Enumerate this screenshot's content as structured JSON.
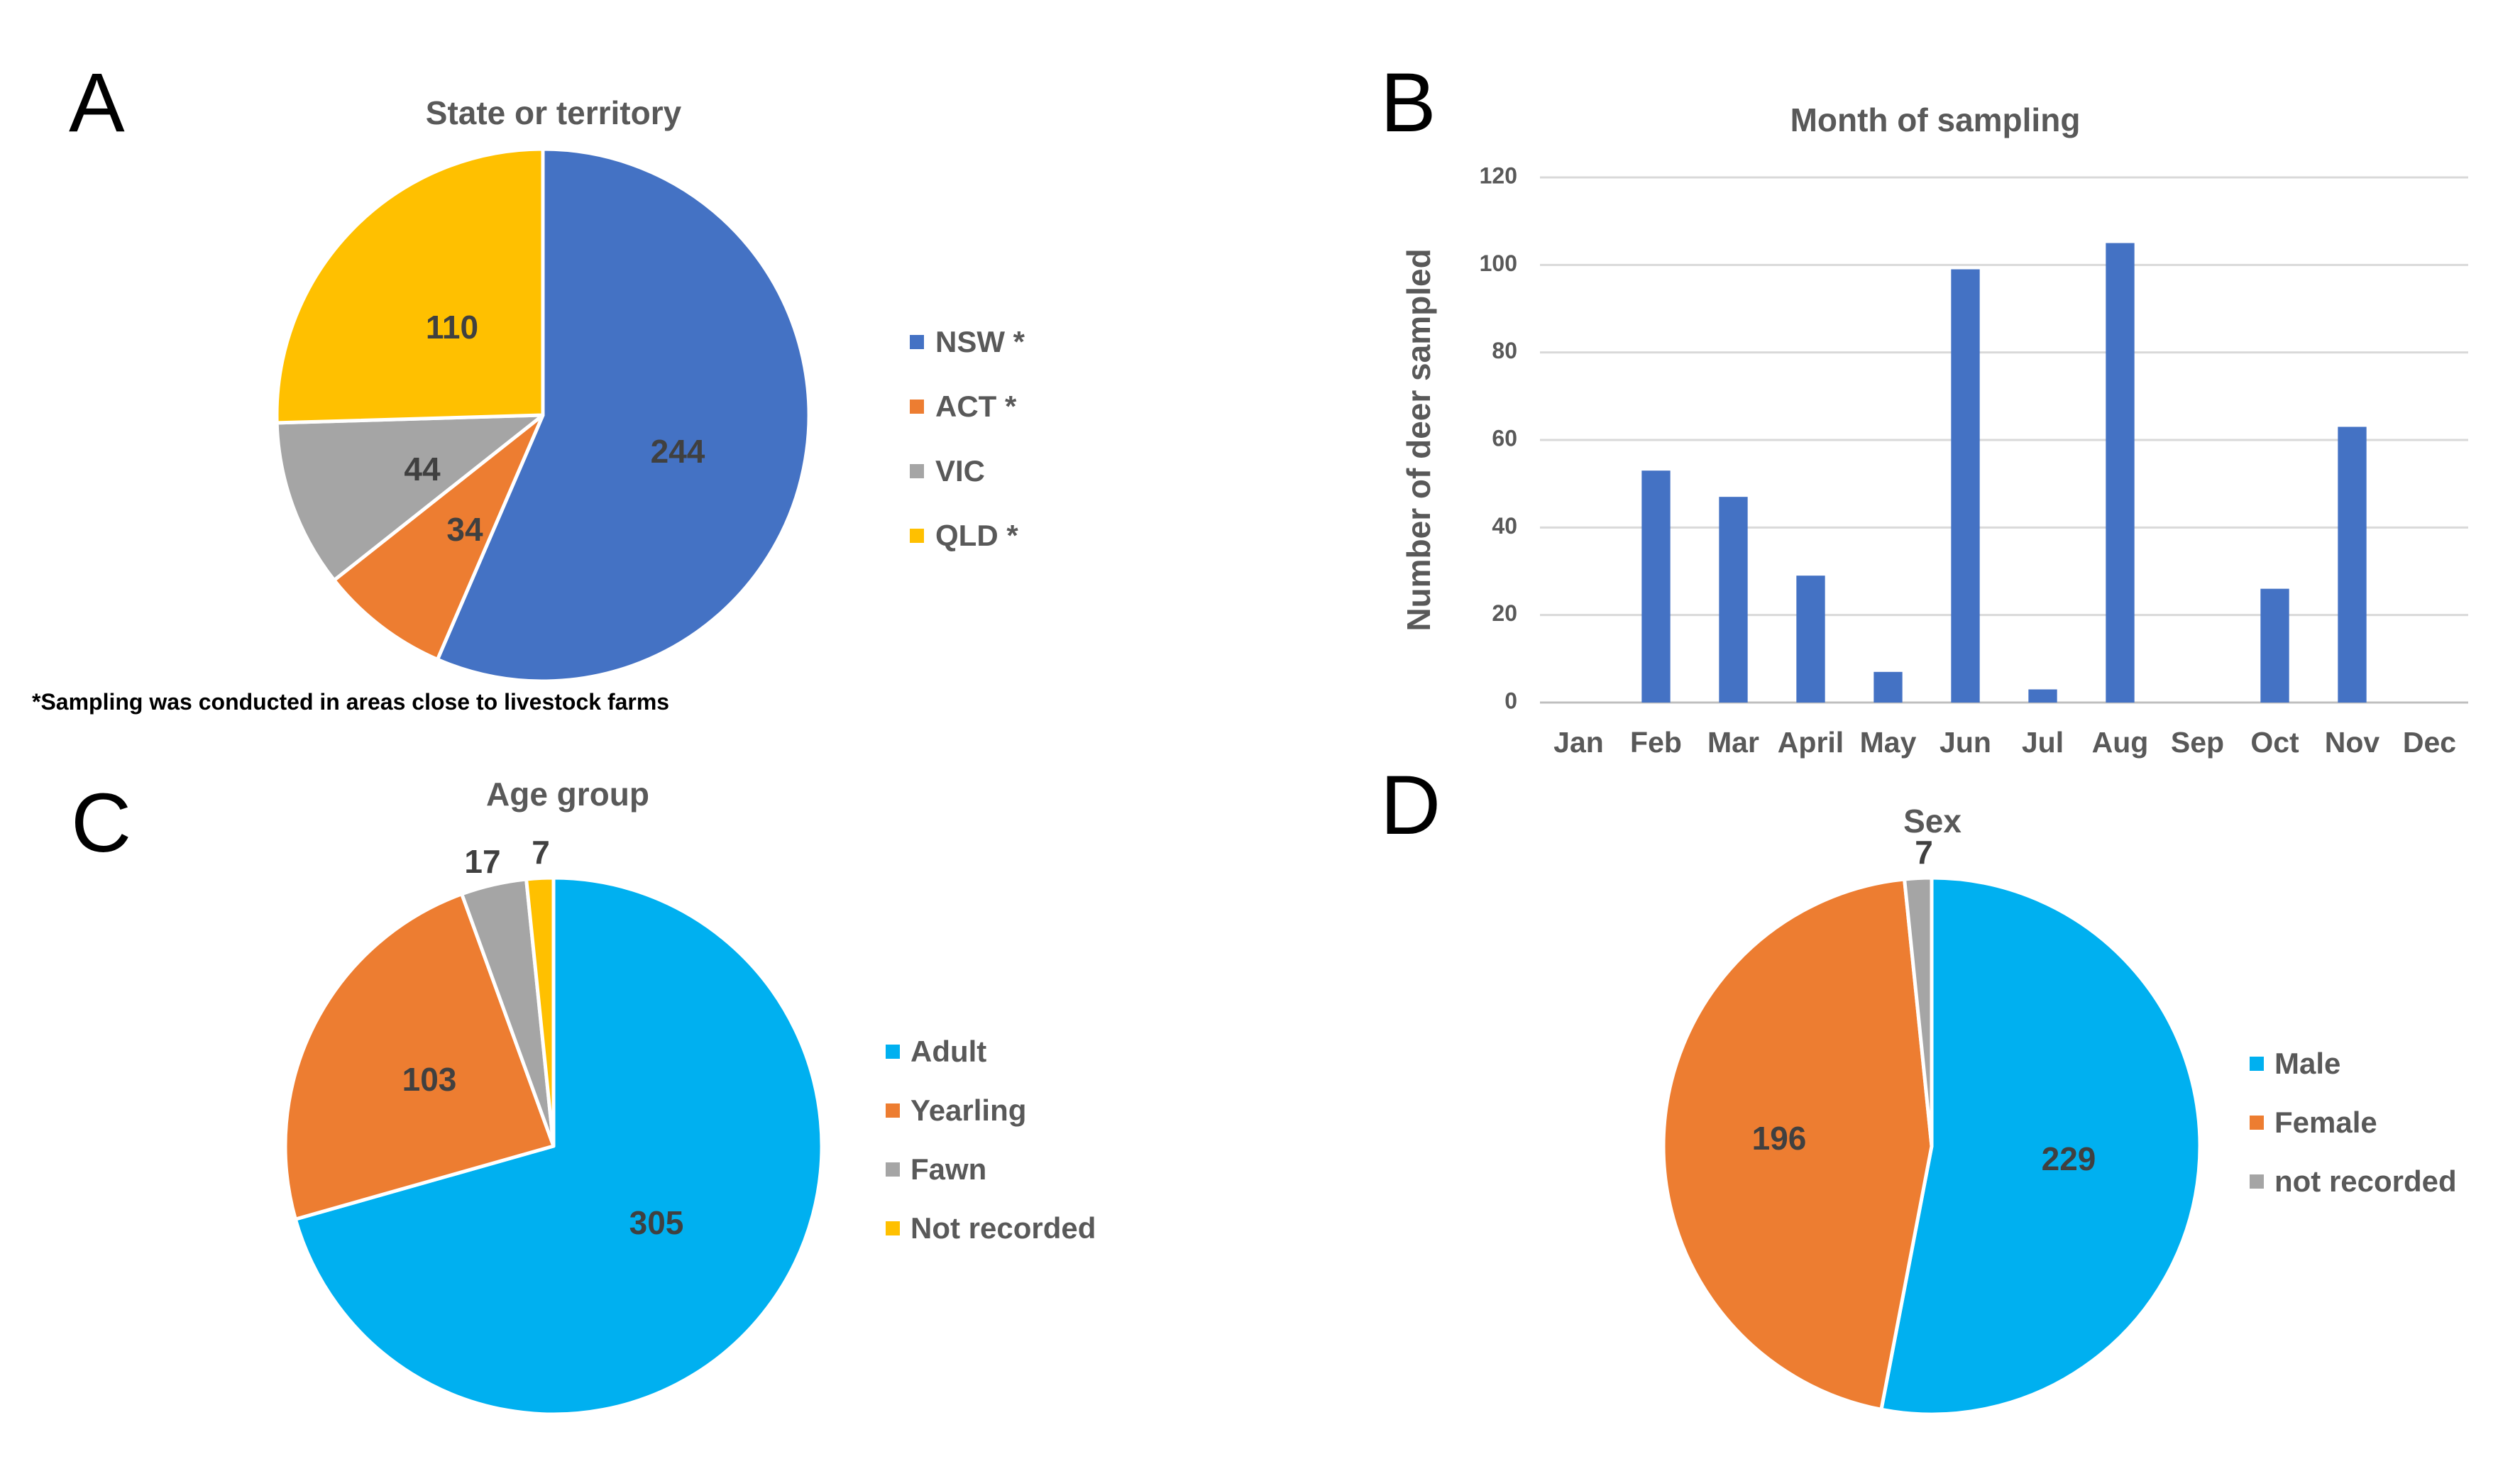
{
  "chart_data": [
    {
      "panel": "A",
      "type": "pie",
      "title": "State or territory",
      "labels": [
        "NSW *",
        "ACT *",
        "VIC",
        "QLD *"
      ],
      "values": [
        244,
        34,
        44,
        110
      ],
      "colors": [
        "#4472c4",
        "#ed7d31",
        "#a5a5a5",
        "#ffc000"
      ],
      "legend_position": "right",
      "footnote": "*Sampling was conducted in areas close to livestock farms"
    },
    {
      "panel": "B",
      "type": "bar",
      "title": "Month of sampling",
      "categories": [
        "Jan",
        "Feb",
        "Mar",
        "April",
        "May",
        "Jun",
        "Jul",
        "Aug",
        "Sep",
        "Oct",
        "Nov",
        "Dec"
      ],
      "values": [
        0,
        53,
        47,
        29,
        7,
        99,
        3,
        105,
        0,
        26,
        63,
        0
      ],
      "xlabel": "",
      "ylabel": "Number of deer sampled",
      "ylim": [
        0,
        120
      ],
      "yticks": [
        0,
        20,
        40,
        60,
        80,
        100,
        120
      ],
      "color": "#4472c4",
      "grid": true
    },
    {
      "panel": "C",
      "type": "pie",
      "title": "Age group",
      "labels": [
        "Adult",
        "Yearling",
        "Fawn",
        "Not recorded"
      ],
      "values": [
        305,
        103,
        17,
        7
      ],
      "colors": [
        "#00b0f0",
        "#ed7d31",
        "#a5a5a5",
        "#ffc000"
      ],
      "legend_position": "right"
    },
    {
      "panel": "D",
      "type": "pie",
      "title": "Sex",
      "labels": [
        "Male",
        "Female",
        "not recorded"
      ],
      "values": [
        229,
        196,
        7
      ],
      "colors": [
        "#00b0f0",
        "#ed7d31",
        "#a5a5a5"
      ],
      "legend_position": "right"
    }
  ]
}
